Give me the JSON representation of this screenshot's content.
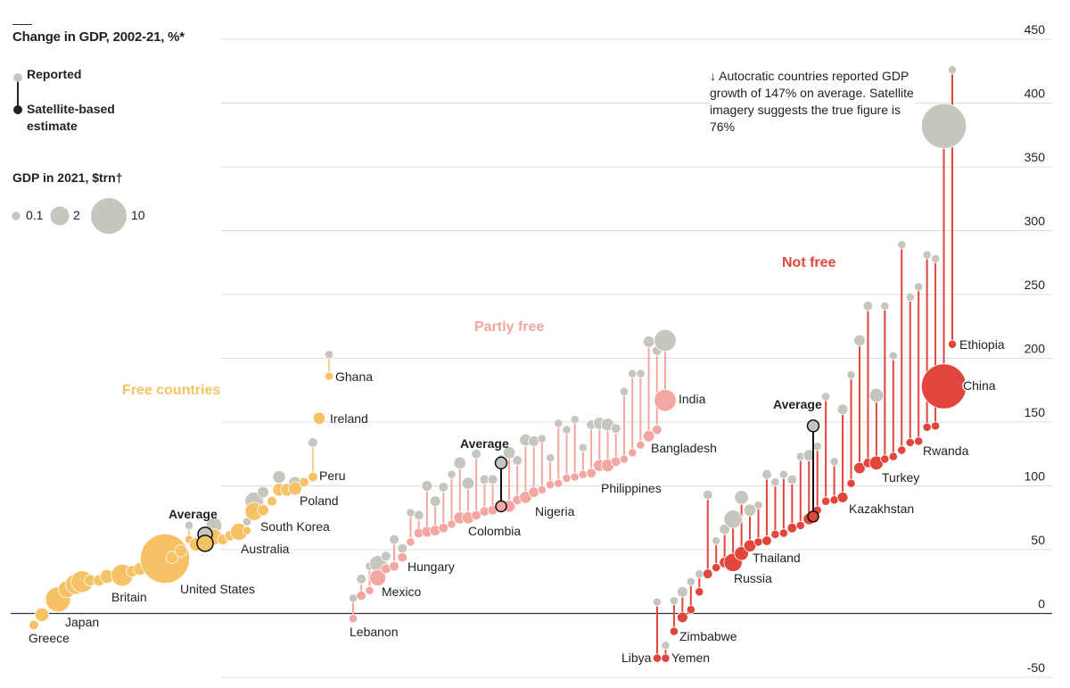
{
  "chart_data": {
    "type": "scatter",
    "title": "Change in GDP, 2002-21, %*",
    "legend": {
      "reported_label": "Reported",
      "estimate_label": "Satellite-based estimate",
      "size_title": "GDP in 2021, $trn†",
      "size_values": [
        0.1,
        2,
        10
      ],
      "size_labels": [
        "0.1",
        "2",
        "10"
      ]
    },
    "annotation": "↓ Autocratic countries reported GDP growth of 147% on average. Satellite imagery suggests the true figure is 76%",
    "y_axis": {
      "range": [
        -50,
        450
      ],
      "ticks": [
        -50,
        0,
        50,
        100,
        150,
        200,
        250,
        300,
        350,
        400,
        450
      ],
      "tick_labels": [
        "-50",
        "0",
        "50",
        "100",
        "150",
        "200",
        "250",
        "300",
        "350",
        "400",
        "450"
      ],
      "position": "right",
      "grid": true
    },
    "colors": {
      "reported": "#c6c5be",
      "free": "#f5c266",
      "partly_free": "#f2a7a3",
      "not_free": "#e2453b",
      "average_estimate_outline": "#111111"
    },
    "point_fields": [
      "reported",
      "satellite_estimate",
      "gdp_2021_trn",
      "label"
    ],
    "groups": [
      {
        "name": "Free countries",
        "color_key": "free",
        "points": [
          [
            -9,
            -9,
            0.2,
            "Greece"
          ],
          [
            -1,
            -1,
            0.8,
            ""
          ],
          [
            11,
            11,
            4.2,
            "Japan"
          ],
          [
            19,
            19,
            1.5,
            ""
          ],
          [
            23,
            23,
            2.5,
            ""
          ],
          [
            25,
            25,
            3,
            ""
          ],
          [
            26,
            26,
            0.4,
            ""
          ],
          [
            26,
            26,
            0.4,
            ""
          ],
          [
            29,
            29,
            0.8,
            ""
          ],
          [
            30,
            30,
            3,
            "Britain"
          ],
          [
            33,
            33,
            0.4,
            ""
          ],
          [
            35,
            35,
            0.6,
            ""
          ],
          [
            43,
            43,
            21,
            "United States"
          ],
          [
            44,
            44,
            0.5,
            ""
          ],
          [
            49,
            49,
            0.5,
            ""
          ],
          [
            69,
            58,
            0.1,
            ""
          ],
          [
            54,
            54,
            0.7,
            ""
          ],
          [
            69,
            60,
            1.2,
            ""
          ],
          [
            58,
            58,
            0.3,
            ""
          ],
          [
            61,
            61,
            0.3,
            ""
          ],
          [
            64,
            64,
            1.5,
            "Australia"
          ],
          [
            72,
            65,
            0.1,
            ""
          ],
          [
            88,
            80,
            1.8,
            "South Korea"
          ],
          [
            95,
            81,
            0.4,
            ""
          ],
          [
            88,
            88,
            0.2,
            ""
          ],
          [
            107,
            97,
            0.6,
            ""
          ],
          [
            97,
            97,
            0.6,
            ""
          ],
          [
            102,
            98,
            0.7,
            "Poland"
          ],
          [
            103,
            103,
            0.2,
            ""
          ],
          [
            134,
            107,
            0.2,
            "Peru"
          ],
          [
            153,
            153,
            0.5,
            "Ireland"
          ],
          [
            203,
            186,
            0.1,
            "Ghana"
          ]
        ],
        "average": {
          "label": "Average",
          "reported": 62,
          "satellite_estimate": 55
        }
      },
      {
        "name": "Partly free",
        "color_key": "partly_free",
        "points": [
          [
            12,
            -4,
            0.1,
            "Lebanon"
          ],
          [
            27,
            14,
            0.2,
            ""
          ],
          [
            37,
            18,
            0.1,
            ""
          ],
          [
            39,
            28,
            1.3,
            "Mexico"
          ],
          [
            45,
            35,
            0.2,
            ""
          ],
          [
            58,
            37,
            0.2,
            ""
          ],
          [
            51,
            44,
            0.2,
            "Hungary"
          ],
          [
            79,
            56,
            0.1,
            ""
          ],
          [
            77,
            63,
            0.2,
            ""
          ],
          [
            100,
            64,
            0.3,
            ""
          ],
          [
            88,
            65,
            0.3,
            ""
          ],
          [
            99,
            67,
            0.2,
            ""
          ],
          [
            109,
            70,
            0.1,
            ""
          ],
          [
            118,
            75,
            0.5,
            "Colombia"
          ],
          [
            102,
            75,
            0.5,
            ""
          ],
          [
            125,
            77,
            0.2,
            ""
          ],
          [
            105,
            80,
            0.2,
            ""
          ],
          [
            105,
            81,
            0.2,
            ""
          ],
          [
            121,
            84,
            0.1,
            ""
          ],
          [
            126,
            84,
            0.5,
            ""
          ],
          [
            120,
            89,
            0.2,
            ""
          ],
          [
            136,
            91,
            0.5,
            "Nigeria"
          ],
          [
            135,
            95,
            0.3,
            ""
          ],
          [
            137,
            97,
            0.1,
            ""
          ],
          [
            122,
            101,
            0.1,
            ""
          ],
          [
            149,
            102,
            0.1,
            ""
          ],
          [
            144,
            106,
            0.1,
            ""
          ],
          [
            152,
            107,
            0.1,
            ""
          ],
          [
            130,
            109,
            0.1,
            ""
          ],
          [
            148,
            110,
            0.2,
            ""
          ],
          [
            149,
            116,
            0.5,
            "Philippines"
          ],
          [
            148,
            116,
            0.6,
            ""
          ],
          [
            145,
            119,
            0.2,
            ""
          ],
          [
            174,
            121,
            0.1,
            ""
          ],
          [
            188,
            126,
            0.1,
            ""
          ],
          [
            188,
            132,
            0.1,
            ""
          ],
          [
            213,
            139,
            0.4,
            "Bangladesh"
          ],
          [
            206,
            144,
            0.2,
            ""
          ],
          [
            214,
            167,
            3,
            "India"
          ]
        ],
        "average": {
          "label": "Average",
          "reported": 118,
          "satellite_estimate": 84
        }
      },
      {
        "name": "Not free",
        "color_key": "not_free",
        "points": [
          [
            9,
            -35,
            0.1,
            "Libya"
          ],
          [
            -25,
            -35,
            0.1,
            "Yemen"
          ],
          [
            10,
            -14,
            0.1,
            "Zimbabwe"
          ],
          [
            17,
            -3,
            0.3,
            ""
          ],
          [
            25,
            3,
            0.1,
            ""
          ],
          [
            31,
            17,
            0.1,
            ""
          ],
          [
            93,
            31,
            0.2,
            ""
          ],
          [
            57,
            36,
            0.1,
            ""
          ],
          [
            66,
            40,
            0.3,
            ""
          ],
          [
            74,
            40,
            1.8,
            "Russia"
          ],
          [
            91,
            47,
            0.8,
            ""
          ],
          [
            81,
            53,
            0.5,
            "Thailand"
          ],
          [
            85,
            56,
            0.1,
            ""
          ],
          [
            109,
            57,
            0.2,
            ""
          ],
          [
            103,
            62,
            0.1,
            ""
          ],
          [
            109,
            63,
            0.1,
            ""
          ],
          [
            105,
            67,
            0.2,
            ""
          ],
          [
            123,
            69,
            0.1,
            ""
          ],
          [
            124,
            74,
            0.4,
            ""
          ],
          [
            131,
            81,
            0.1,
            ""
          ],
          [
            170,
            88,
            0.1,
            ""
          ],
          [
            119,
            89,
            0.1,
            ""
          ],
          [
            160,
            91,
            0.3,
            "Kazakhstan"
          ],
          [
            187,
            102,
            0.1,
            ""
          ],
          [
            214,
            114,
            0.4,
            ""
          ],
          [
            241,
            118,
            0.2,
            ""
          ],
          [
            171,
            118,
            0.8,
            "Turkey"
          ],
          [
            241,
            121,
            0.1,
            ""
          ],
          [
            202,
            123,
            0.1,
            ""
          ],
          [
            289,
            128,
            0.1,
            ""
          ],
          [
            248,
            134,
            0.1,
            ""
          ],
          [
            256,
            135,
            0.1,
            "Rwanda"
          ],
          [
            281,
            146,
            0.1,
            ""
          ],
          [
            278,
            147,
            0.1,
            ""
          ],
          [
            382,
            178,
            17,
            "China"
          ],
          [
            426,
            211,
            0.1,
            "Ethiopia"
          ]
        ],
        "average": {
          "label": "Average",
          "reported": 147,
          "satellite_estimate": 76
        }
      }
    ]
  }
}
